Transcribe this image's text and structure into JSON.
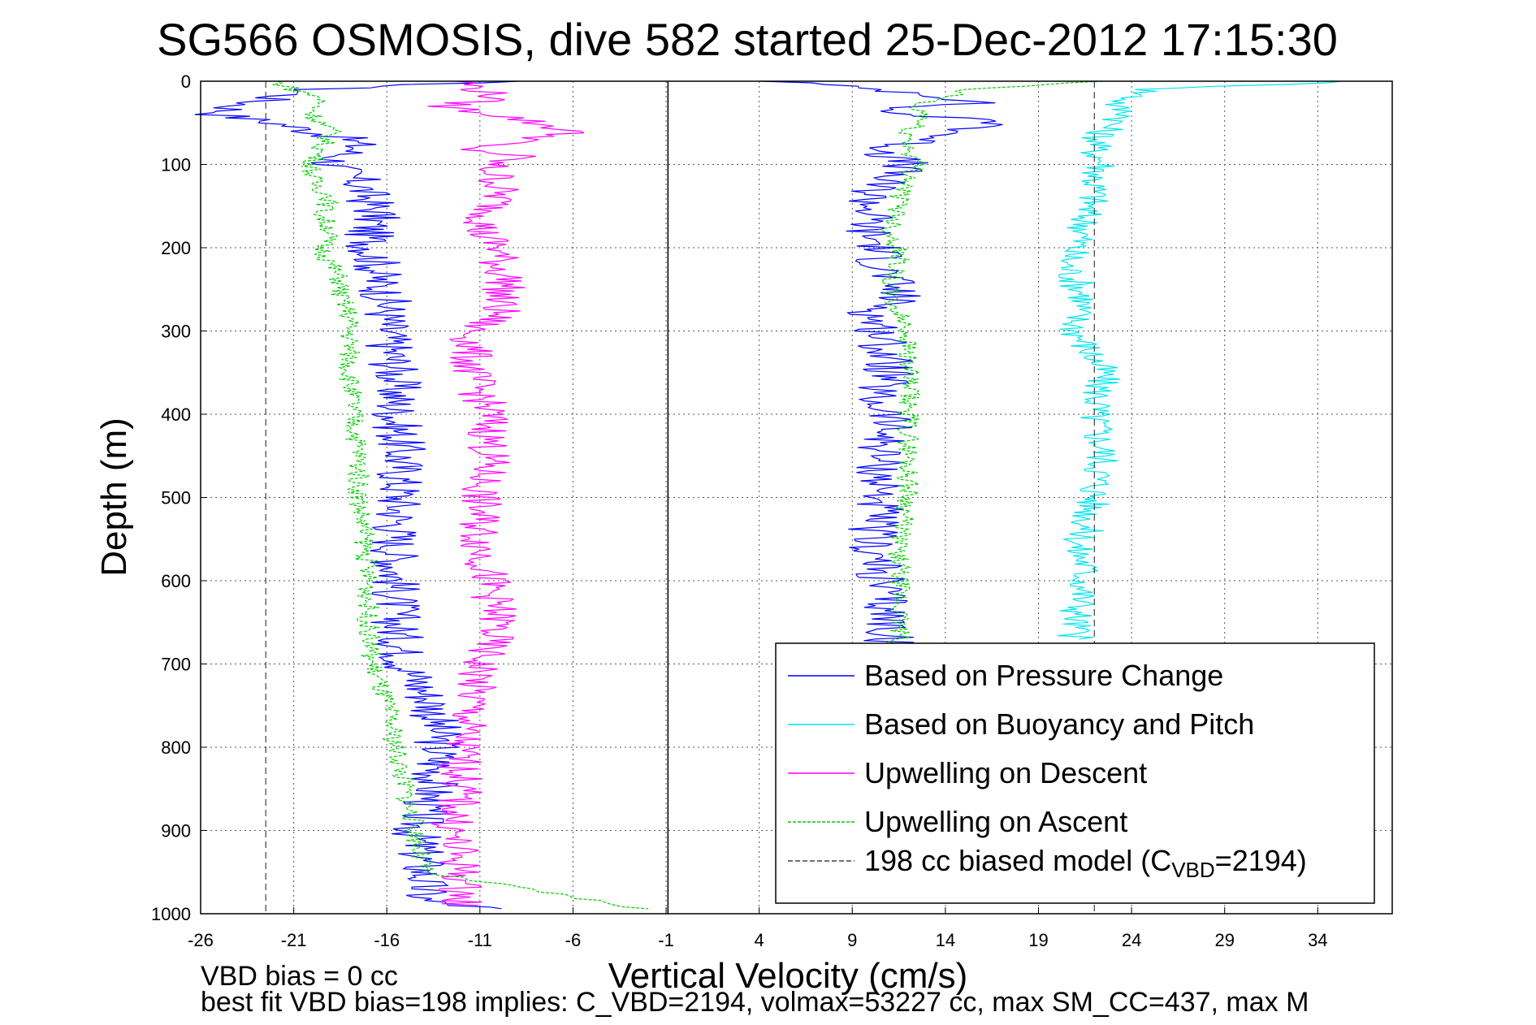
{
  "chart_data": {
    "type": "line",
    "title": "SG566 OSMOSIS, dive 582 started 25-Dec-2012 17:15:30",
    "xlabel": "Vertical Velocity (cm/s)",
    "ylabel": "Depth (m)",
    "xlim": [
      -26,
      38
    ],
    "ylim": [
      0,
      1000
    ],
    "y_reversed": true,
    "x_ticks": [
      -26,
      -21,
      -16,
      -11,
      -6,
      -1,
      4,
      9,
      14,
      19,
      24,
      29,
      34
    ],
    "y_ticks": [
      0,
      100,
      200,
      300,
      400,
      500,
      600,
      700,
      800,
      900,
      1000
    ],
    "grid": true,
    "legend_position": "bottom-right",
    "zero_line_x": -0.9,
    "series": [
      {
        "name": "Based on Pressure Change",
        "color": "#0000ff",
        "style": "solid",
        "segments": [
          {
            "depth": [
              0,
              10,
              20,
              30,
              40,
              50,
              60,
              70,
              80,
              90,
              100,
              120,
              140,
              160,
              180,
              200,
              220,
              240,
              260,
              280,
              300,
              350,
              400,
              450,
              500,
              550,
              600,
              650,
              700,
              750,
              800,
              850,
              900,
              950,
              985,
              995
            ],
            "velocity": [
              -10,
              -20,
              -22,
              -24,
              -25,
              -22,
              -20,
              -18,
              -17.5,
              -18.5,
              -19,
              -17.5,
              -17,
              -16.5,
              -17,
              -16.8,
              -16.5,
              -16.5,
              -16,
              -16,
              -16,
              -15.5,
              -15.5,
              -15.2,
              -15.3,
              -15.5,
              -15.5,
              -15.5,
              -15,
              -13.5,
              -13.2,
              -13.5,
              -14.5,
              -14,
              -14,
              -10
            ]
          },
          {
            "depth": [
              0,
              15,
              25,
              35,
              50,
              60,
              70,
              80,
              90,
              100,
              120,
              140,
              160,
              180,
              200,
              220,
              240,
              260,
              280,
              300,
              350,
              380,
              400,
              450,
              500,
              550,
              600,
              650,
              700
            ],
            "velocity": [
              5,
              13,
              16,
              10,
              17,
              15,
              13,
              11,
              11,
              12,
              10.5,
              10,
              10,
              9.8,
              10.5,
              10.5,
              11,
              11.5,
              10,
              10.5,
              11,
              10,
              11,
              10.5,
              10.5,
              10,
              10.5,
              11,
              11
            ]
          }
        ]
      },
      {
        "name": "Based on Buoyancy and Pitch",
        "color": "#00e5ee",
        "style": "solid",
        "segments": [
          {
            "depth": [
              0,
              10,
              20,
              30,
              40,
              50,
              60,
              80,
              100,
              120,
              140,
              160,
              180,
              200,
              220,
              240,
              260,
              280,
              300,
              350,
              400,
              450,
              500,
              540,
              560,
              580,
              600,
              650,
              670
            ],
            "velocity": [
              36,
              25,
              24,
              23,
              24,
              23,
              22.5,
              22,
              22.5,
              22,
              22,
              21.5,
              21.5,
              21,
              20.5,
              21,
              21.5,
              21,
              21,
              22.5,
              22,
              22.5,
              22,
              21.5,
              21,
              21.5,
              21.5,
              21,
              21
            ]
          }
        ]
      },
      {
        "name": "Upwelling on Descent",
        "color": "#ff00ff",
        "style": "solid",
        "segments": [
          {
            "depth": [
              0,
              10,
              20,
              30,
              40,
              50,
              60,
              70,
              80,
              90,
              100,
              120,
              140,
              160,
              180,
              200,
              220,
              240,
              260,
              280,
              300,
              350,
              400,
              450,
              500,
              550,
              600,
              650,
              700,
              750,
              800,
              850,
              900,
              950,
              990
            ],
            "velocity": [
              -12,
              -11,
              -10,
              -13,
              -10,
              -8,
              -6,
              -8,
              -12,
              -9,
              -10.5,
              -10,
              -10,
              -10.5,
              -11,
              -10,
              -10,
              -9.5,
              -10,
              -10,
              -11.5,
              -11.5,
              -10.5,
              -10.5,
              -11,
              -11,
              -10.5,
              -10,
              -11,
              -11.5,
              -12,
              -12,
              -12.5,
              -12,
              -12
            ]
          }
        ]
      },
      {
        "name": "Upwelling on Ascent",
        "color": "#00cc00",
        "style": "dashed",
        "segments": [
          {
            "depth": [
              0,
              10,
              20,
              40,
              60,
              80,
              100,
              120,
              140,
              160,
              180,
              200,
              220,
              240,
              260,
              280,
              300,
              350,
              400,
              450,
              500,
              550,
              600,
              650,
              700,
              750,
              800,
              850,
              900,
              950,
              995
            ],
            "velocity": [
              -22,
              -21,
              -19.5,
              -20,
              -19,
              -19.5,
              -20,
              -20,
              -19,
              -19.5,
              -19,
              -19.5,
              -19,
              -18.5,
              -18.5,
              -18,
              -18,
              -18,
              -17.8,
              -17.5,
              -17.5,
              -17.2,
              -17,
              -17,
              -16.8,
              -16,
              -15.5,
              -15,
              -14.5,
              -14,
              -2
            ]
          },
          {
            "depth": [
              0,
              10,
              20,
              30,
              40,
              60,
              80,
              100,
              120,
              140,
              160,
              180,
              200,
              220,
              240,
              260,
              280,
              300,
              350,
              400,
              450,
              500,
              550,
              600,
              650,
              700
            ],
            "velocity": [
              22,
              15,
              14,
              12,
              13,
              12,
              12,
              12.5,
              12,
              11.5,
              11.5,
              11,
              11.5,
              11.5,
              11,
              11,
              11.5,
              12,
              12,
              12,
              12,
              12,
              11.5,
              11.5,
              11.5,
              11.5
            ]
          }
        ]
      },
      {
        "name": "198 cc biased model (CVBD=2194)",
        "color": "#404040",
        "style": "dashed",
        "segments": [
          {
            "depth": [
              0,
              1000
            ],
            "velocity": [
              -22.5,
              -22.5
            ]
          },
          {
            "depth": [
              0,
              1000
            ],
            "velocity": [
              22,
              22
            ]
          }
        ]
      }
    ],
    "legend_entries": [
      "Based on Pressure Change",
      "Based on Buoyancy and Pitch",
      "Upwelling on Descent",
      "Upwelling on Ascent"
    ],
    "legend_model_label_prefix": "198 cc biased model (C",
    "legend_model_label_subscript": "VBD",
    "legend_model_label_suffix": "=2194)",
    "annotations": [
      "VBD bias = 0 cc",
      "best fit VBD bias=198 implies: C_VBD=2194, volmax=53227 cc, max SM_CC=437, max M"
    ]
  }
}
